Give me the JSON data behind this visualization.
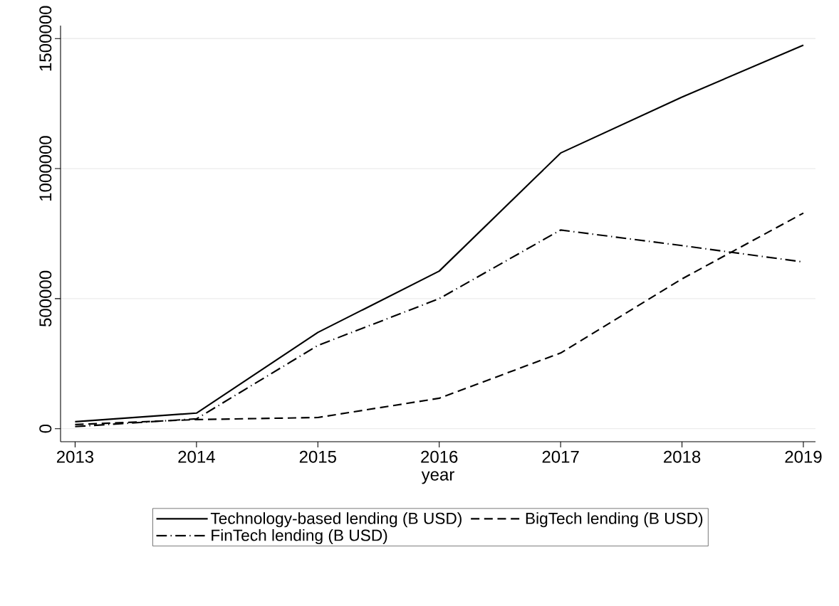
{
  "chart_data": {
    "type": "line",
    "xlabel": "year",
    "x": [
      2013,
      2014,
      2015,
      2016,
      2017,
      2018,
      2019
    ],
    "series": [
      {
        "name": "Technology-based lending (B USD)",
        "color": "#000000",
        "line_style": "solid",
        "values": [
          27000,
          60000,
          370000,
          606000,
          1060000,
          1275000,
          1475000
        ]
      },
      {
        "name": "BigTech lending (B USD)",
        "color": "#000000",
        "line_style": "dashed",
        "values": [
          16000,
          35000,
          43000,
          117000,
          291000,
          576000,
          829000
        ]
      },
      {
        "name": "FinTech lending (B USD)",
        "color": "#000000",
        "line_style": "dashdot",
        "values": [
          8000,
          38000,
          320000,
          500000,
          764000,
          704000,
          641000
        ]
      }
    ],
    "xlim": [
      2012.88,
      2019.1
    ],
    "xticks": [
      2013,
      2014,
      2015,
      2016,
      2017,
      2018,
      2019
    ],
    "ylim": [
      -50000,
      1550000
    ],
    "yticks": [
      0,
      500000,
      1000000,
      1500000
    ],
    "grid": "y",
    "legend": "bottom",
    "marker": "none"
  }
}
